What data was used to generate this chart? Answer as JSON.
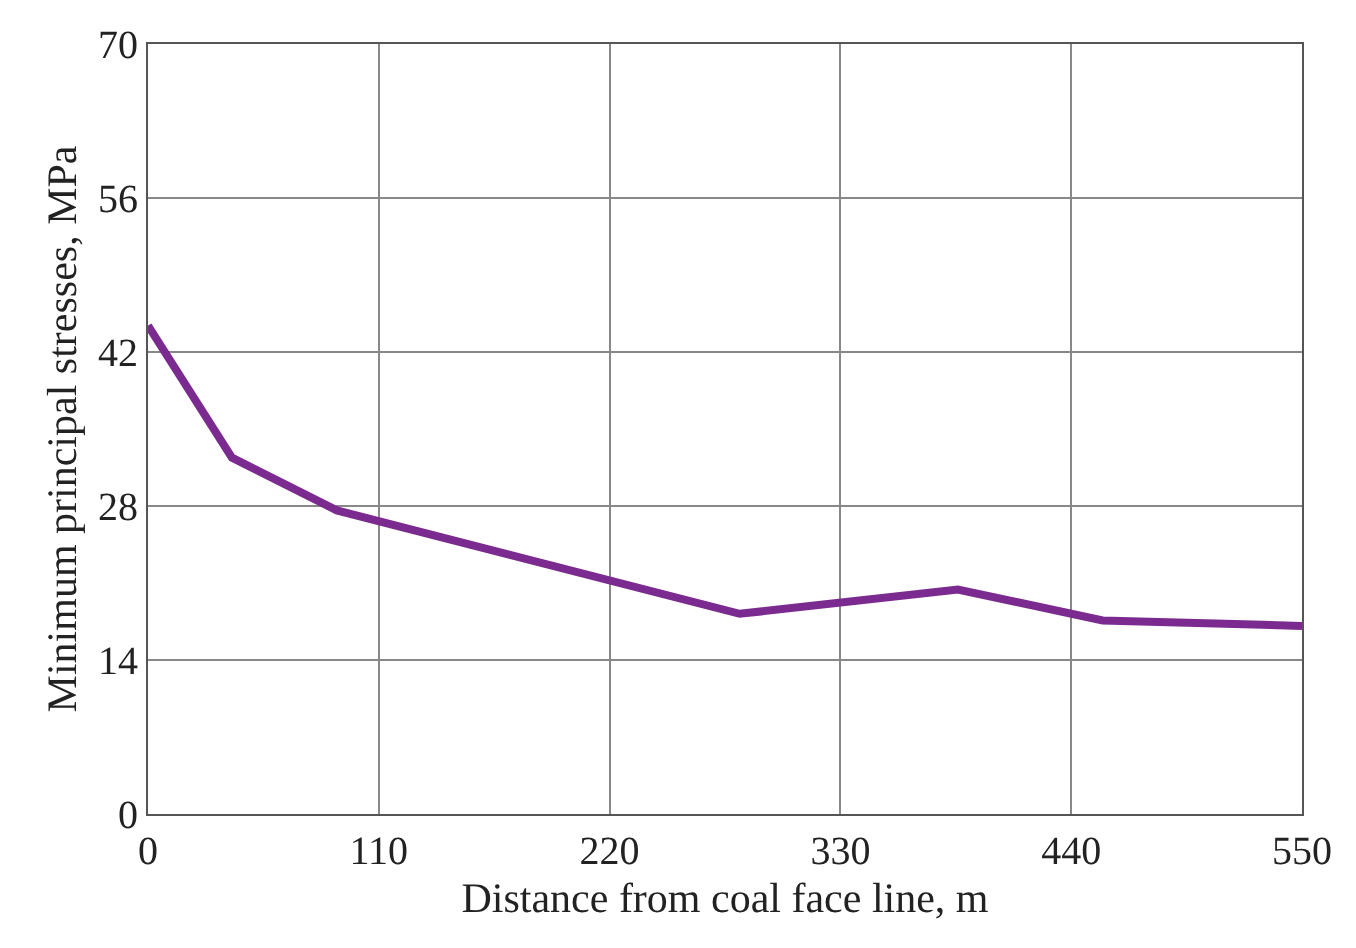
{
  "chart_data": {
    "type": "line",
    "xlabel": "Distance from coal face line, m",
    "ylabel": "Minimum principal stresses, MPa",
    "x": [
      0,
      40,
      90,
      282,
      386,
      455,
      550
    ],
    "series": [
      {
        "color": "#7b2a8f",
        "values": [
          44.4,
          32.4,
          27.6,
          18.2,
          20.4,
          17.6,
          17.1
        ]
      }
    ],
    "xlim": [
      0,
      550
    ],
    "xticks": [
      0,
      110,
      220,
      330,
      440,
      550
    ],
    "ylim": [
      0,
      70
    ],
    "yticks": [
      0,
      14,
      28,
      42,
      56,
      70
    ],
    "grid": true,
    "marker": "none",
    "line_style": "solid"
  }
}
